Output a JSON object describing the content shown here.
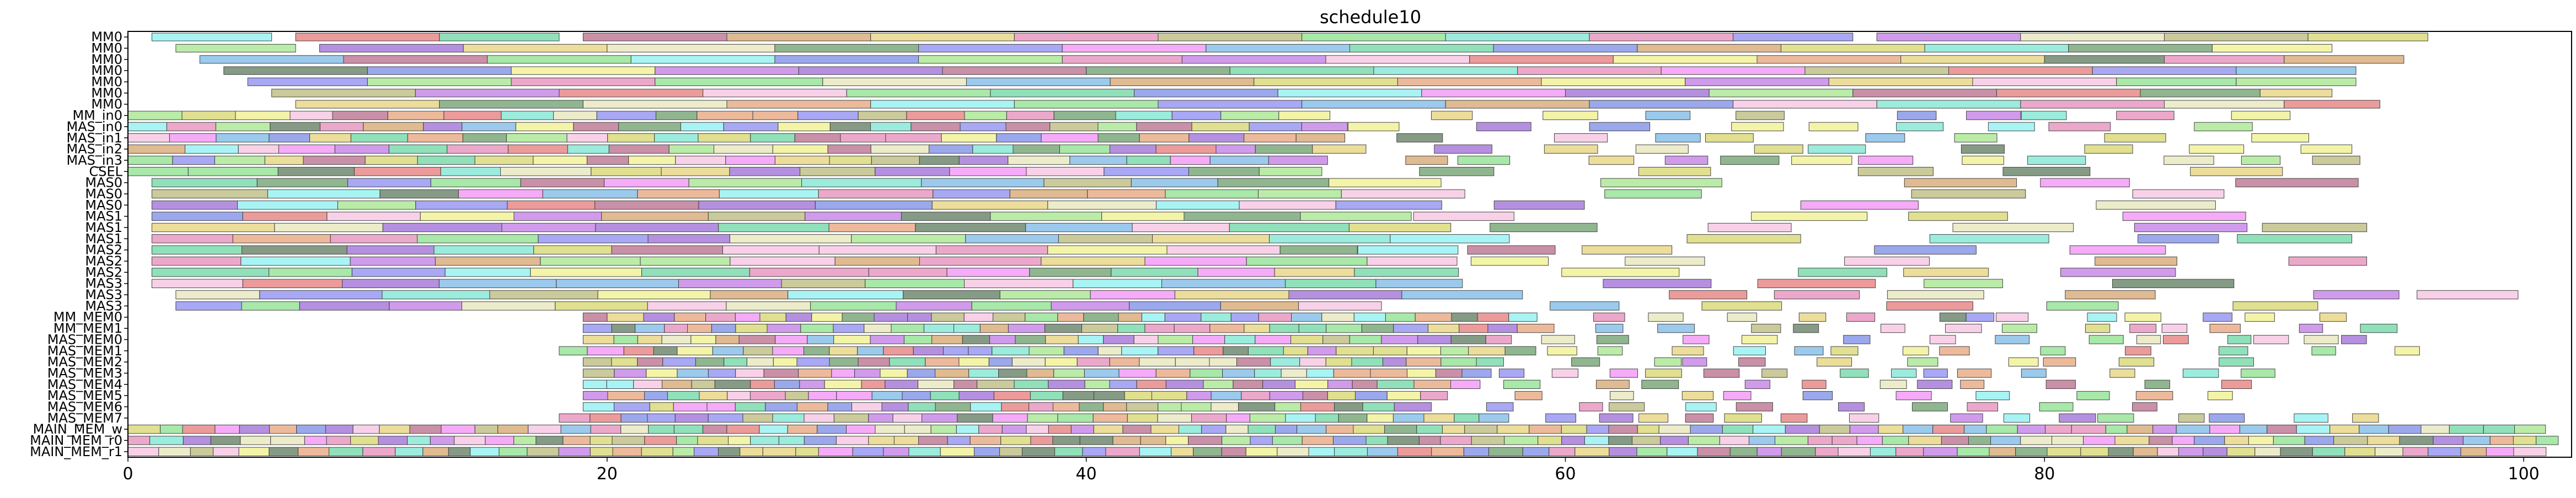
{
  "chart_data": {
    "type": "gantt",
    "title": "schedule10",
    "xlabel": "",
    "ylabel": "",
    "xlim": [
      0,
      102
    ],
    "x_ticks": [
      0,
      20,
      40,
      60,
      80,
      100
    ],
    "grid": false,
    "lanes": [
      "MM0",
      "MM0",
      "MM0",
      "MM0",
      "MM0",
      "MM0",
      "MM0",
      "MM_in0",
      "MAS_in0",
      "MAS_in1",
      "MAS_in2",
      "MAS_in3",
      "CSEL",
      "MAS0",
      "MAS0",
      "MAS0",
      "MAS1",
      "MAS1",
      "MAS1",
      "MAS2",
      "MAS2",
      "MAS2",
      "MAS3",
      "MAS3",
      "MAS3",
      "MM_MEM0",
      "MM_MEM1",
      "MAS_MEM0",
      "MAS_MEM1",
      "MAS_MEM2",
      "MAS_MEM3",
      "MAS_MEM4",
      "MAS_MEM5",
      "MAS_MEM6",
      "MAS_MEM7",
      "MAIN_MEM_w",
      "MAIN_MEM_r0",
      "MAIN_MEM_r1"
    ],
    "palette": [
      "#f28ff5",
      "#8be08b",
      "#e6d27a",
      "#7a8be6",
      "#e67a7a",
      "#7ae6d2",
      "#c27ae6",
      "#a3e68b",
      "#e6a37a",
      "#7ab8e6",
      "#b8b87a",
      "#6b9e6b",
      "#e68bb8",
      "#8bf0f0",
      "#d6a36b",
      "#9e6bd6",
      "#f0f08b",
      "#6bd6a3",
      "#e6e6b8",
      "#b86b8b",
      "#8b8bf0",
      "#f5c2e0",
      "#5c7a5c",
      "#d6d66b"
    ],
    "tasks": [
      [
        1,
        5,
        13
      ],
      [
        7,
        6,
        4
      ],
      [
        13,
        5,
        17
      ],
      [
        19,
        6,
        19
      ],
      [
        25,
        6,
        14
      ],
      [
        31,
        6,
        2
      ],
      [
        37,
        6,
        12
      ],
      [
        43,
        6,
        10
      ],
      [
        49,
        6,
        1
      ],
      [
        55,
        6,
        5
      ],
      [
        61,
        6,
        12
      ],
      [
        67,
        5,
        20
      ],
      [
        73,
        6,
        6
      ],
      [
        79,
        6,
        18
      ],
      [
        85,
        6,
        10
      ],
      [
        91,
        5,
        23
      ],
      [
        2,
        5,
        7
      ],
      [
        8,
        6,
        15
      ],
      [
        14,
        6,
        2
      ],
      [
        20,
        7,
        18
      ],
      [
        27,
        6,
        11
      ],
      [
        33,
        6,
        20
      ],
      [
        39,
        6,
        0
      ],
      [
        45,
        6,
        9
      ],
      [
        51,
        6,
        17
      ],
      [
        57,
        6,
        3
      ],
      [
        63,
        6,
        14
      ],
      [
        69,
        6,
        23
      ],
      [
        75,
        6,
        5
      ],
      [
        81,
        6,
        11
      ],
      [
        87,
        5,
        16
      ],
      [
        3,
        6,
        9
      ],
      [
        9,
        6,
        19
      ],
      [
        15,
        6,
        1
      ],
      [
        21,
        6,
        13
      ],
      [
        27,
        6,
        3
      ],
      [
        33,
        6,
        7
      ],
      [
        39,
        5,
        12
      ],
      [
        44,
        6,
        6
      ],
      [
        50,
        6,
        21
      ],
      [
        56,
        6,
        4
      ],
      [
        62,
        6,
        16
      ],
      [
        68,
        6,
        8
      ],
      [
        74,
        6,
        2
      ],
      [
        80,
        5,
        22
      ],
      [
        85,
        5,
        12
      ],
      [
        90,
        5,
        14
      ],
      [
        4,
        6,
        22
      ],
      [
        10,
        6,
        3
      ],
      [
        16,
        6,
        16
      ],
      [
        22,
        6,
        6
      ],
      [
        28,
        6,
        15
      ],
      [
        34,
        6,
        19
      ],
      [
        40,
        6,
        11
      ],
      [
        46,
        6,
        17
      ],
      [
        52,
        6,
        5
      ],
      [
        58,
        6,
        12
      ],
      [
        64,
        6,
        0
      ],
      [
        70,
        6,
        10
      ],
      [
        76,
        6,
        4
      ],
      [
        82,
        6,
        20
      ],
      [
        88,
        5,
        9
      ],
      [
        5,
        5,
        20
      ],
      [
        10,
        6,
        7
      ],
      [
        16,
        6,
        12
      ],
      [
        22,
        7,
        1
      ],
      [
        29,
        6,
        18
      ],
      [
        35,
        6,
        9
      ],
      [
        41,
        6,
        14
      ],
      [
        47,
        6,
        23
      ],
      [
        53,
        6,
        8
      ],
      [
        59,
        6,
        16
      ],
      [
        65,
        6,
        6
      ],
      [
        71,
        6,
        2
      ],
      [
        77,
        6,
        21
      ],
      [
        83,
        5,
        1
      ],
      [
        88,
        5,
        7
      ],
      [
        6,
        6,
        10
      ],
      [
        12,
        6,
        6
      ],
      [
        18,
        6,
        4
      ],
      [
        24,
        6,
        21
      ],
      [
        30,
        6,
        1
      ],
      [
        36,
        6,
        17
      ],
      [
        42,
        6,
        3
      ],
      [
        48,
        6,
        13
      ],
      [
        54,
        6,
        0
      ],
      [
        60,
        6,
        15
      ],
      [
        66,
        6,
        7
      ],
      [
        72,
        6,
        19
      ],
      [
        78,
        6,
        4
      ],
      [
        84,
        5,
        11
      ],
      [
        89,
        3,
        2
      ],
      [
        7,
        6,
        2
      ],
      [
        13,
        6,
        11
      ],
      [
        19,
        6,
        18
      ],
      [
        25,
        6,
        8
      ],
      [
        31,
        6,
        13
      ],
      [
        37,
        6,
        1
      ],
      [
        43,
        6,
        20
      ],
      [
        49,
        6,
        9
      ],
      [
        55,
        6,
        14
      ],
      [
        61,
        6,
        3
      ],
      [
        67,
        6,
        21
      ],
      [
        73,
        6,
        5
      ],
      [
        79,
        6,
        12
      ],
      [
        85,
        5,
        18
      ],
      [
        90,
        4,
        4
      ]
    ]
  }
}
